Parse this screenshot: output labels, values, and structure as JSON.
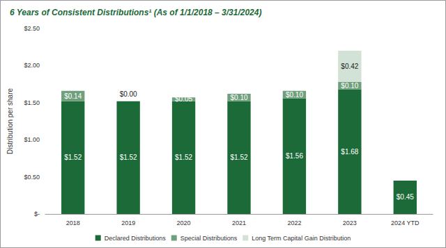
{
  "chart_data": {
    "type": "bar",
    "title": "6 Years of Consistent Distributions¹ (As of 1/1/2018 – 3/31/2024)",
    "y_label": "Distribution per share",
    "categories": [
      "2018",
      "2019",
      "2020",
      "2021",
      "2022",
      "2023",
      "2024 YTD"
    ],
    "series": [
      {
        "name": "Declared Distributions",
        "color": "#1b6a37",
        "values": [
          1.52,
          1.52,
          1.52,
          1.52,
          1.56,
          1.68,
          0.45
        ],
        "value_labels": [
          "$1.52",
          "$1.52",
          "$1.52",
          "$1.52",
          "$1.56",
          "$1.68",
          "$0.45"
        ]
      },
      {
        "name": "Special Distributions",
        "color": "#6f9f7c",
        "values": [
          0.14,
          0.0,
          0.05,
          0.1,
          0.1,
          0.1,
          null
        ],
        "value_labels": [
          "$0.14",
          "$0.00",
          "$0.05",
          "$0.10",
          "$0.10",
          "$0.10",
          null
        ]
      },
      {
        "name": "Long Term Capital Gain Distribution",
        "color": "#d3e2d6",
        "values": [
          null,
          null,
          null,
          null,
          null,
          0.42,
          null
        ],
        "value_labels": [
          null,
          null,
          null,
          null,
          null,
          "$0.42",
          null
        ]
      }
    ],
    "ylim": [
      0,
      2.5
    ],
    "yticks": [
      {
        "value": 0,
        "label": "$-"
      },
      {
        "value": 0.5,
        "label": "$0.50"
      },
      {
        "value": 1.0,
        "label": "$1.00"
      },
      {
        "value": 1.5,
        "label": "$1.50"
      },
      {
        "value": 2.0,
        "label": "$2.00"
      },
      {
        "value": 2.5,
        "label": "$2.50"
      }
    ],
    "stacked": true,
    "data_labels": true,
    "grid": false,
    "legend": "bottom"
  }
}
